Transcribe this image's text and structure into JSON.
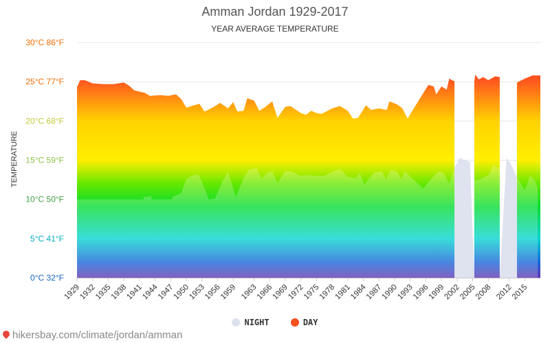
{
  "header": {
    "title": "Amman Jordan 1929-2017",
    "subtitle": "YEAR AVERAGE TEMPERATURE"
  },
  "legend": {
    "night_label": "NIGHT",
    "day_label": "DAY",
    "night_color": "#dde1ee",
    "day_color": "#f4511e"
  },
  "footer": {
    "source": "hikersbay.com/climate/jordan/amman"
  },
  "chart_data": {
    "type": "area",
    "title": "Amman Jordan 1929-2017",
    "subtitle": "YEAR AVERAGE TEMPERATURE",
    "ylabel": "TEMPERATURE",
    "ylim": [
      0,
      30
    ],
    "xlim": [
      1929,
      2018
    ],
    "y_tick_labels": [
      "0°C 32°F",
      "5°C 41°F",
      "10°C 50°F",
      "15°C 59°F",
      "20°C 68°F",
      "25°C 77°F",
      "30°C 86°F"
    ],
    "y_tick_values": [
      0,
      5,
      10,
      15,
      20,
      25,
      30
    ],
    "y_tick_colors": [
      "#1565c0",
      "#00acc1",
      "#43a047",
      "#8bc34a",
      "#c0ca33",
      "#ef6c00",
      "#ef6c00"
    ],
    "x_ticks": [
      1929,
      1932,
      1935,
      1938,
      1941,
      1944,
      1947,
      1950,
      1953,
      1956,
      1959,
      1963,
      1966,
      1969,
      1972,
      1975,
      1978,
      1981,
      1984,
      1987,
      1990,
      1993,
      1996,
      1999,
      2002,
      2005,
      2008,
      2012,
      2015
    ],
    "grid": true,
    "legend_position": "bottom",
    "series": [
      {
        "name": "DAY",
        "points": [
          [
            1929,
            24.3
          ],
          [
            1929.6,
            25.2
          ],
          [
            1930.5,
            25.2
          ],
          [
            1932,
            24.8
          ],
          [
            1934,
            24.7
          ],
          [
            1936,
            24.7
          ],
          [
            1938,
            24.9
          ],
          [
            1939,
            24.5
          ],
          [
            1940,
            23.9
          ],
          [
            1942,
            23.6
          ],
          [
            1943,
            23.2
          ],
          [
            1945,
            23.3
          ],
          [
            1946.5,
            23.2
          ],
          [
            1948,
            23.4
          ],
          [
            1949,
            22.8
          ],
          [
            1950,
            21.7
          ],
          [
            1951,
            21.9
          ],
          [
            1952.5,
            22.2
          ],
          [
            1953.5,
            21.2
          ],
          [
            1955,
            21.7
          ],
          [
            1956.5,
            22.3
          ],
          [
            1958,
            21.6
          ],
          [
            1959,
            22.4
          ],
          [
            1959.8,
            21.2
          ],
          [
            1961,
            21.3
          ],
          [
            1961.7,
            22.9
          ],
          [
            1963,
            22.6
          ],
          [
            1964,
            21.3
          ],
          [
            1965,
            21.7
          ],
          [
            1966.5,
            22.5
          ],
          [
            1967.5,
            20.4
          ],
          [
            1969,
            21.8
          ],
          [
            1970,
            21.9
          ],
          [
            1972,
            21.0
          ],
          [
            1973,
            20.8
          ],
          [
            1974,
            21.3
          ],
          [
            1975,
            21.0
          ],
          [
            1976,
            20.9
          ],
          [
            1978,
            21.6
          ],
          [
            1979.5,
            21.9
          ],
          [
            1981,
            21.3
          ],
          [
            1982,
            20.3
          ],
          [
            1983,
            20.4
          ],
          [
            1984.5,
            22.0
          ],
          [
            1985.5,
            21.4
          ],
          [
            1987,
            21.6
          ],
          [
            1988.5,
            21.4
          ],
          [
            1989,
            22.5
          ],
          [
            1990.5,
            22.1
          ],
          [
            1991.5,
            21.6
          ],
          [
            1992.5,
            20.3
          ],
          [
            1993.5,
            21.4
          ],
          [
            1995,
            23.0
          ],
          [
            1996.5,
            24.6
          ],
          [
            1997.5,
            24.4
          ],
          [
            1998,
            23.4
          ],
          [
            1999,
            24.4
          ],
          [
            2000,
            24.0
          ],
          [
            2000.5,
            25.4
          ],
          [
            2001.3,
            25.1
          ],
          [
            2001.5,
            25.1
          ]
        ],
        "segments": [
          [
            [
              2005.3,
              25.0
            ],
            [
              2005.5,
              25.9
            ],
            [
              2006.2,
              25.3
            ],
            [
              2007,
              25.6
            ],
            [
              2008,
              25.2
            ],
            [
              2009.3,
              25.7
            ],
            [
              2010.2,
              25.6
            ]
          ],
          [
            [
              2013.5,
              24.9
            ],
            [
              2015,
              25.4
            ],
            [
              2016.5,
              25.8
            ],
            [
              2018,
              25.8
            ]
          ]
        ]
      },
      {
        "name": "NIGHT",
        "points": [
          [
            1929,
            10.0
          ],
          [
            1941.8,
            10.0
          ],
          [
            1941.8,
            10.3
          ],
          [
            1943.3,
            10.4
          ],
          [
            1943.3,
            10.0
          ],
          [
            1947.3,
            10.0
          ],
          [
            1947.3,
            10.3
          ],
          [
            1949,
            10.8
          ],
          [
            1950,
            12.6
          ],
          [
            1951,
            13.0
          ],
          [
            1952.3,
            13.2
          ],
          [
            1953.3,
            11.8
          ],
          [
            1954.3,
            10.0
          ],
          [
            1955.5,
            10.1
          ],
          [
            1957,
            12.4
          ],
          [
            1958,
            13.5
          ],
          [
            1958.8,
            11.9
          ],
          [
            1959.5,
            10.3
          ],
          [
            1961,
            12.7
          ],
          [
            1962,
            13.8
          ],
          [
            1963.5,
            14.0
          ],
          [
            1964.5,
            12.6
          ],
          [
            1965.5,
            13.4
          ],
          [
            1966.5,
            13.6
          ],
          [
            1967.5,
            12.1
          ],
          [
            1969,
            13.6
          ],
          [
            1970,
            13.6
          ],
          [
            1972,
            13.0
          ],
          [
            1973,
            13.1
          ],
          [
            1975,
            13.0
          ],
          [
            1976.5,
            13.0
          ],
          [
            1978,
            13.5
          ],
          [
            1979.5,
            13.9
          ],
          [
            1981,
            12.9
          ],
          [
            1982.5,
            12.7
          ],
          [
            1983.3,
            13.4
          ],
          [
            1984.2,
            11.9
          ],
          [
            1986,
            13.4
          ],
          [
            1987.5,
            13.6
          ],
          [
            1988.3,
            12.6
          ],
          [
            1989.3,
            13.8
          ],
          [
            1990.5,
            13.5
          ],
          [
            1991.3,
            12.6
          ],
          [
            1992,
            13.6
          ],
          [
            1993,
            12.9
          ],
          [
            1994,
            12.3
          ],
          [
            1995.5,
            11.4
          ],
          [
            1997,
            12.6
          ],
          [
            1998.5,
            13.6
          ],
          [
            1999.5,
            13.3
          ],
          [
            2000.5,
            12.0
          ],
          [
            2001.5,
            14.0
          ],
          [
            2002.5,
            15.3
          ],
          [
            2003.5,
            15.0
          ],
          [
            2004.5,
            14.8
          ],
          [
            2005.5,
            12.4
          ],
          [
            2006.5,
            12.6
          ],
          [
            2008,
            13.1
          ],
          [
            2009,
            14.4
          ],
          [
            2010,
            14.0
          ],
          [
            2011.5,
            15.3
          ],
          [
            2012.5,
            14.3
          ],
          [
            2013.5,
            12.8
          ],
          [
            2015,
            11.2
          ],
          [
            2016,
            13.0
          ],
          [
            2017,
            12.4
          ],
          [
            2017.5,
            11.3
          ]
        ]
      }
    ],
    "gaps": [
      [
        2001.5,
        2005.3
      ],
      [
        2010.2,
        2013.5
      ]
    ],
    "color_scale": [
      {
        "value": 30,
        "color": "#ff1a3c"
      },
      {
        "value": 25,
        "color": "#ff5a1e"
      },
      {
        "value": 20,
        "color": "#ffd200"
      },
      {
        "value": 15,
        "color": "#ffef00"
      },
      {
        "value": 12,
        "color": "#66e800"
      },
      {
        "value": 9,
        "color": "#00dc32"
      },
      {
        "value": 5,
        "color": "#00d4d0"
      },
      {
        "value": 2,
        "color": "#1565d8"
      },
      {
        "value": 0,
        "color": "#5e35b1"
      }
    ]
  }
}
